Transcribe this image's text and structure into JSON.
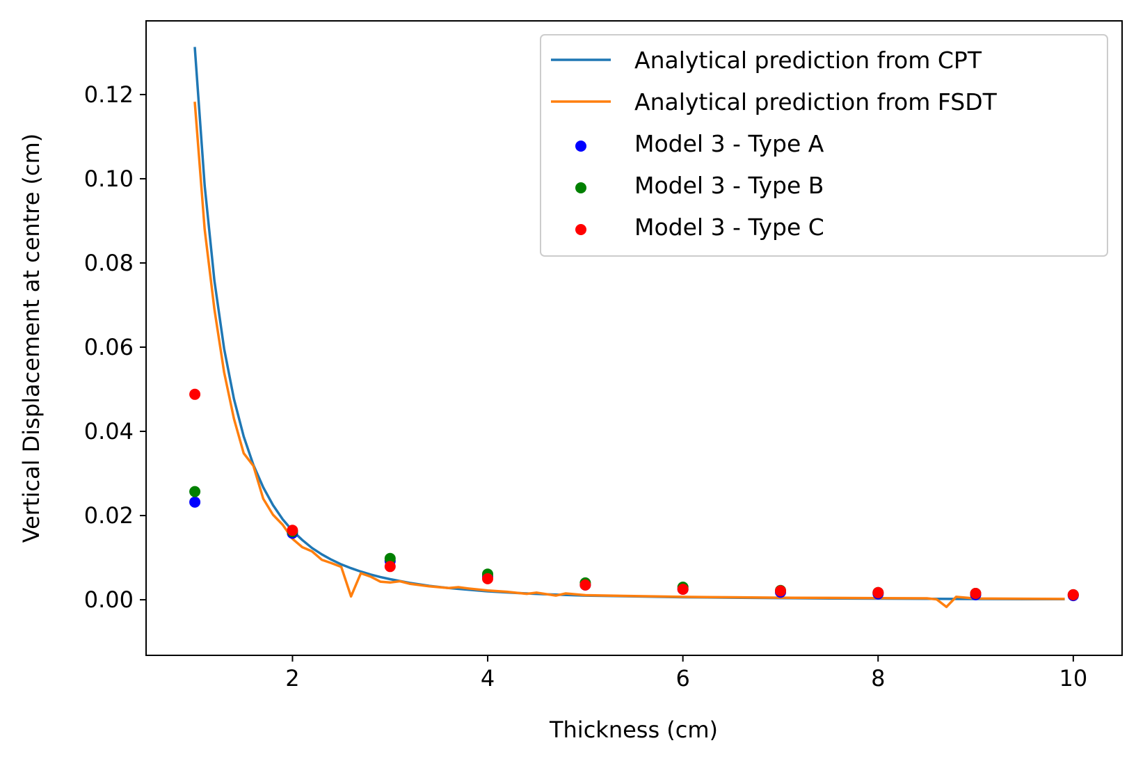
{
  "chart_data": {
    "type": "line",
    "title": "",
    "xlabel": "Thickness (cm)",
    "ylabel": "Vertical Displacement at centre (cm)",
    "xlim": [
      0.5,
      10.5
    ],
    "ylim": [
      -0.0132,
      0.1375
    ],
    "xticks": [
      {
        "value": 2,
        "label": "2"
      },
      {
        "value": 4,
        "label": "4"
      },
      {
        "value": 6,
        "label": "6"
      },
      {
        "value": 8,
        "label": "8"
      },
      {
        "value": 10,
        "label": "10"
      }
    ],
    "yticks": [
      {
        "value": 0.0,
        "label": "0.00"
      },
      {
        "value": 0.02,
        "label": "0.02"
      },
      {
        "value": 0.04,
        "label": "0.04"
      },
      {
        "value": 0.06,
        "label": "0.06"
      },
      {
        "value": 0.08,
        "label": "0.08"
      },
      {
        "value": 0.1,
        "label": "0.10"
      },
      {
        "value": 0.12,
        "label": "0.12"
      }
    ],
    "grid": false,
    "legend_position": "top-right",
    "lines": [
      {
        "name": "Analytical prediction from CPT",
        "color": "#1f77b4",
        "x": [
          1.0,
          1.1,
          1.2,
          1.3,
          1.4,
          1.5,
          1.6,
          1.7,
          1.8,
          1.9,
          2.0,
          2.1,
          2.2,
          2.3,
          2.4,
          2.5,
          2.6,
          2.7,
          2.8,
          2.9,
          3.0,
          3.2,
          3.4,
          3.6,
          3.8,
          4.0,
          4.3,
          4.6,
          5.0,
          5.5,
          6.0,
          6.5,
          7.0,
          7.5,
          8.0,
          8.5,
          9.0,
          9.5,
          9.9
        ],
        "y": [
          0.131,
          0.0984,
          0.0758,
          0.0596,
          0.0477,
          0.0388,
          0.032,
          0.0267,
          0.0225,
          0.0191,
          0.0164,
          0.0142,
          0.0123,
          0.0108,
          0.0095,
          0.0084,
          0.0075,
          0.0067,
          0.006,
          0.0054,
          0.0049,
          0.004,
          0.0033,
          0.0028,
          0.0024,
          0.002,
          0.0016,
          0.0013,
          0.001,
          0.0008,
          0.0006,
          0.0005,
          0.0004,
          0.0003,
          0.00026,
          0.00021,
          0.00018,
          0.00015,
          0.00013
        ]
      },
      {
        "name": "Analytical prediction from FSDT",
        "color": "#ff7f0e",
        "x": [
          1.0,
          1.1,
          1.2,
          1.3,
          1.4,
          1.5,
          1.6,
          1.7,
          1.8,
          1.9,
          2.0,
          2.1,
          2.2,
          2.3,
          2.4,
          2.5,
          2.6,
          2.7,
          2.8,
          2.9,
          3.0,
          3.1,
          3.2,
          3.4,
          3.6,
          3.7,
          3.8,
          4.0,
          4.2,
          4.4,
          4.5,
          4.7,
          4.8,
          5.0,
          5.5,
          6.0,
          6.5,
          7.0,
          7.5,
          8.0,
          8.5,
          8.6,
          8.7,
          8.8,
          9.0,
          9.5,
          9.9
        ],
        "y": [
          0.118,
          0.088,
          0.069,
          0.054,
          0.043,
          0.0348,
          0.0318,
          0.024,
          0.0202,
          0.0178,
          0.0145,
          0.0125,
          0.0115,
          0.0095,
          0.0087,
          0.0078,
          0.0008,
          0.0063,
          0.0055,
          0.0043,
          0.0041,
          0.0044,
          0.0038,
          0.0032,
          0.0028,
          0.003,
          0.0027,
          0.0022,
          0.0019,
          0.0014,
          0.0017,
          0.001,
          0.0015,
          0.0011,
          0.0009,
          0.0007,
          0.0006,
          0.0005,
          0.00045,
          0.0004,
          0.00035,
          0.0001,
          -0.0017,
          0.0007,
          0.0003,
          0.00025,
          0.0002
        ]
      }
    ],
    "scatter": [
      {
        "name": "Model 3 - Type A",
        "color": "#0000ff",
        "x": [
          1,
          2,
          3,
          4,
          5,
          6,
          7,
          8,
          9,
          10
        ],
        "y": [
          0.0232,
          0.0158,
          0.0092,
          0.0055,
          0.0035,
          0.0025,
          0.0018,
          0.0014,
          0.0012,
          0.001
        ]
      },
      {
        "name": "Model 3 - Type B",
        "color": "#008000",
        "x": [
          1,
          2,
          3,
          4,
          5,
          6,
          7,
          8,
          9,
          10
        ],
        "y": [
          0.0257,
          0.0162,
          0.0098,
          0.0061,
          0.004,
          0.003,
          0.0022,
          0.0017,
          0.0015,
          0.0012
        ]
      },
      {
        "name": "Model 3 - Type C",
        "color": "#ff0000",
        "x": [
          1,
          2,
          3,
          4,
          5,
          6,
          7,
          8,
          9,
          10
        ],
        "y": [
          0.0488,
          0.0165,
          0.0079,
          0.005,
          0.0035,
          0.0025,
          0.0021,
          0.0017,
          0.0015,
          0.0012
        ]
      }
    ]
  }
}
